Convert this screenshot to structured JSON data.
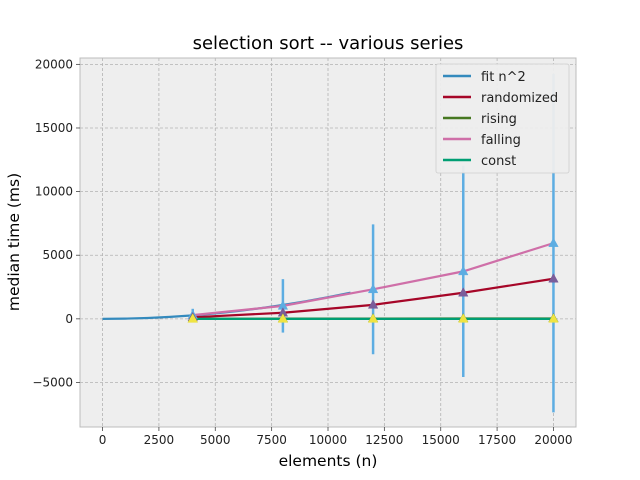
{
  "chart_data": {
    "type": "line",
    "title": "selection sort -- various series",
    "xlabel": "elements (n)",
    "ylabel": "median time (ms)",
    "xlim": [
      -1000,
      21000
    ],
    "ylim": [
      -8500,
      20500
    ],
    "xticks": [
      0,
      2500,
      5000,
      7500,
      10000,
      12500,
      15000,
      17500,
      20000
    ],
    "xtick_labels": [
      "0",
      "2500",
      "5000",
      "7500",
      "10000",
      "12500",
      "15000",
      "17500",
      "20000"
    ],
    "yticks": [
      -5000,
      0,
      5000,
      10000,
      15000,
      20000
    ],
    "ytick_labels": [
      "−5000",
      "0",
      "5000",
      "10000",
      "15000",
      "20000"
    ],
    "grid": true,
    "legend_position": "top-right",
    "series": [
      {
        "name": "fit n^2",
        "color": "#348abd",
        "kind": "curve",
        "x": [
          0,
          1000,
          2000,
          3000,
          4000,
          5000,
          6000,
          7000,
          8000,
          9000,
          10000,
          11000
        ],
        "y": [
          0,
          17,
          68,
          153,
          272,
          425,
          612,
          833,
          1088,
          1377,
          1700,
          2057
        ]
      },
      {
        "name": "randomized",
        "color": "#a60628",
        "marker": "triangle",
        "x": [
          4000,
          8000,
          12000,
          16000,
          20000
        ],
        "y": [
          120,
          480,
          1100,
          2050,
          3150
        ],
        "err": [
          150,
          200,
          250,
          300,
          350
        ]
      },
      {
        "name": "rising",
        "color": "#467821",
        "marker": "triangle",
        "x": [
          4000,
          8000,
          12000,
          16000,
          20000
        ],
        "y": [
          10,
          15,
          20,
          25,
          30
        ],
        "err": [
          20,
          20,
          20,
          20,
          20
        ]
      },
      {
        "name": "falling",
        "color": "#cf6fa8",
        "marker": "triangle",
        "x": [
          4000,
          8000,
          12000,
          16000,
          20000
        ],
        "y": [
          290,
          1020,
          2320,
          3730,
          5950
        ],
        "err": [
          500,
          2100,
          5100,
          8300,
          13300
        ]
      },
      {
        "name": "const",
        "color": "#009e73",
        "marker": "triangle",
        "x": [
          4000,
          8000,
          12000,
          16000,
          20000
        ],
        "y": [
          0,
          0,
          0,
          0,
          0
        ],
        "err": [
          30,
          30,
          30,
          30,
          30
        ]
      }
    ],
    "errorbar_color": "#5dade2",
    "marker_colors": {
      "falling": "#5dade2",
      "randomized": "#7a5d9a",
      "const": "#f0e442"
    }
  }
}
